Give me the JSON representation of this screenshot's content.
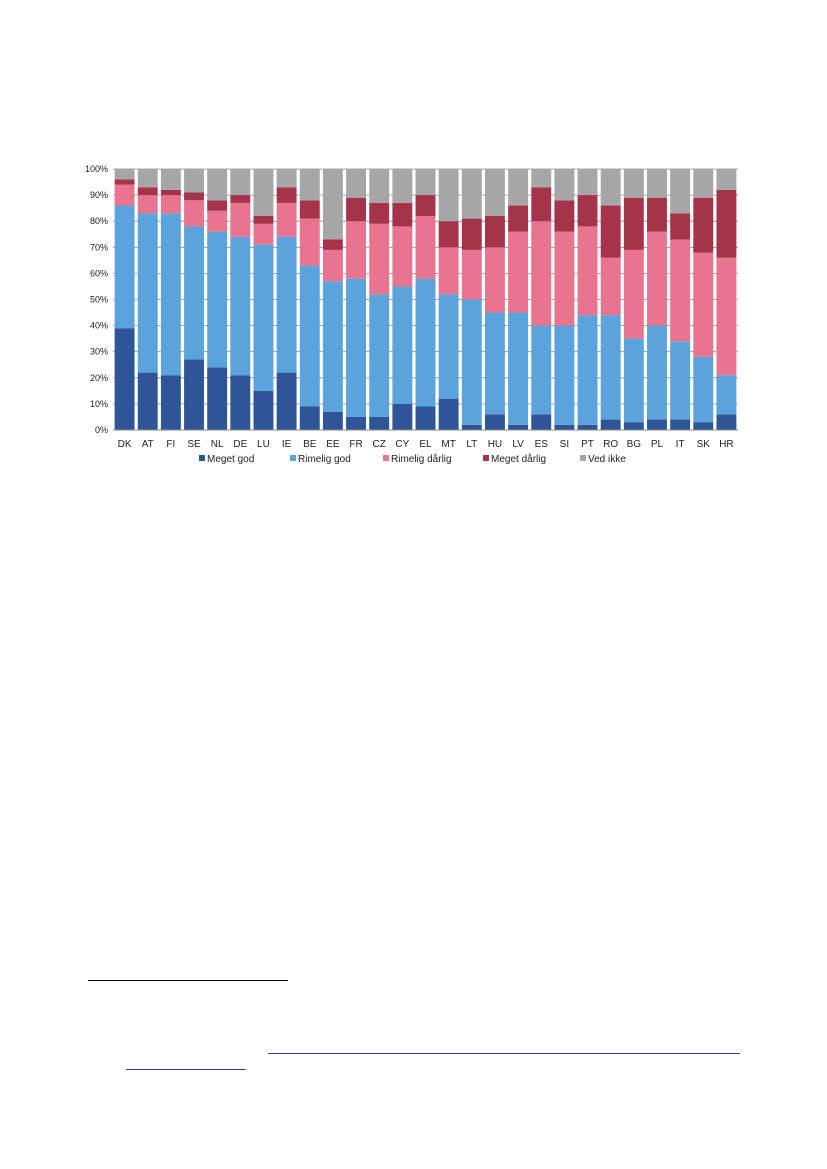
{
  "chart_data": {
    "type": "bar",
    "stacked": true,
    "percent": true,
    "ylim": [
      0,
      100
    ],
    "yticks": [
      "0%",
      "10%",
      "20%",
      "30%",
      "40%",
      "50%",
      "60%",
      "70%",
      "80%",
      "90%",
      "100%"
    ],
    "grid": true,
    "legend_position": "bottom",
    "categories": [
      "DK",
      "AT",
      "FI",
      "SE",
      "NL",
      "DE",
      "LU",
      "IE",
      "BE",
      "EE",
      "FR",
      "CZ",
      "CY",
      "EL",
      "MT",
      "LT",
      "HU",
      "LV",
      "ES",
      "SI",
      "PT",
      "RO",
      "BG",
      "PL",
      "IT",
      "SK",
      "HR"
    ],
    "series": [
      {
        "name": "Meget god",
        "color": "#2e5597",
        "values": [
          39,
          22,
          21,
          27,
          24,
          21,
          15,
          22,
          9,
          7,
          5,
          5,
          10,
          9,
          12,
          2,
          6,
          2,
          6,
          2,
          2,
          4,
          3,
          4,
          4,
          3,
          6
        ]
      },
      {
        "name": "Rimelig god",
        "color": "#5aa3dc",
        "values": [
          47,
          61,
          62,
          51,
          52,
          53,
          56,
          52,
          54,
          50,
          53,
          47,
          45,
          49,
          40,
          48,
          39,
          43,
          34,
          38,
          42,
          40,
          32,
          36,
          30,
          25,
          15
        ]
      },
      {
        "name": "Rimelig dårlig",
        "color": "#e9748f",
        "values": [
          8,
          7,
          7,
          10,
          8,
          13,
          8,
          13,
          18,
          12,
          22,
          27,
          23,
          24,
          18,
          19,
          25,
          31,
          40,
          36,
          34,
          22,
          34,
          36,
          39,
          40,
          45
        ]
      },
      {
        "name": "Meget dårlig",
        "color": "#a5344b",
        "values": [
          2,
          3,
          2,
          3,
          4,
          3,
          3,
          6,
          7,
          4,
          9,
          8,
          9,
          8,
          10,
          12,
          12,
          10,
          13,
          12,
          12,
          20,
          20,
          13,
          10,
          21,
          26
        ]
      },
      {
        "name": "Ved ikke",
        "color": "#a6a6a6",
        "values": [
          4,
          7,
          8,
          9,
          12,
          10,
          18,
          7,
          12,
          27,
          11,
          13,
          13,
          10,
          20,
          19,
          18,
          14,
          7,
          12,
          10,
          14,
          11,
          11,
          17,
          11,
          8
        ]
      }
    ]
  }
}
